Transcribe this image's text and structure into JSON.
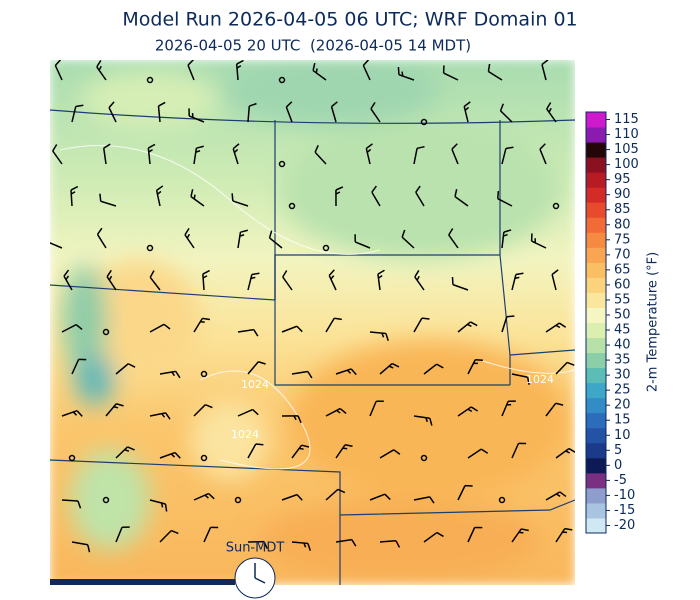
{
  "title": "Model Run 2026-04-05 06 UTC; WRF Domain 01",
  "subtitle": "2026-04-05 20 UTC  (2026-04-05 14 MDT)",
  "colorbar": {
    "label": "2-m Temperature (°F)",
    "ticks": [
      -20,
      -15,
      -10,
      -5,
      0,
      5,
      10,
      15,
      20,
      25,
      30,
      35,
      40,
      45,
      50,
      55,
      60,
      65,
      70,
      75,
      80,
      85,
      90,
      95,
      100,
      105,
      110,
      115
    ],
    "colors": [
      "#cfe8f4",
      "#a9c4e0",
      "#8e9dcb",
      "#7b2f80",
      "#0d1a55",
      "#1b3b8a",
      "#2453a6",
      "#2b6cbb",
      "#338cc6",
      "#3ea6c6",
      "#5bbdb6",
      "#8acfa7",
      "#b7e1a8",
      "#dcefb1",
      "#f6f6c2",
      "#fae69c",
      "#fbd37c",
      "#fbbf63",
      "#f9a551",
      "#f78a41",
      "#f26a36",
      "#e84a2c",
      "#d52b26",
      "#b71c24",
      "#8b1020",
      "#250608",
      "#8a1ab0",
      "#cc1acc"
    ]
  },
  "clock_label": "Sun-MDT",
  "contour_labels": [
    "1024",
    "1024",
    "1024"
  ]
}
